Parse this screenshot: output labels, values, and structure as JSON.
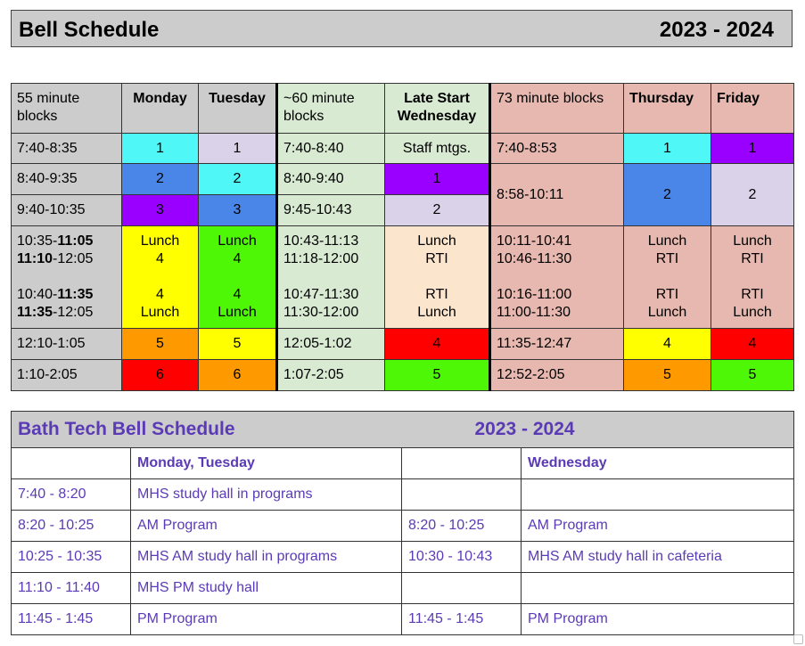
{
  "title": {
    "left": "Bell Schedule",
    "right": "2023 - 2024"
  },
  "schedule": {
    "blocks55": {
      "header": [
        "55 minute",
        "blocks"
      ],
      "monday": "Monday",
      "tuesday": "Tuesday",
      "rows": [
        {
          "time": "7:40-8:35",
          "mon": "1",
          "tue": "1"
        },
        {
          "time": "8:40-9:35",
          "mon": "2",
          "tue": "2"
        },
        {
          "time": "9:40-10:35",
          "mon": "3",
          "tue": "3"
        },
        {
          "time_a1": "10:35-",
          "time_a1b": "11:05",
          "time_a2b": "11:10",
          "time_a2": "-12:05",
          "time_b1": "10:40-",
          "time_b1b": "11:35",
          "time_b2b": "11:35",
          "time_b2": "-12:05",
          "mon": [
            "Lunch",
            "4",
            "4",
            "Lunch"
          ],
          "tue": [
            "Lunch",
            "4",
            "4",
            "Lunch"
          ]
        },
        {
          "time": "12:10-1:05",
          "mon": "5",
          "tue": "5"
        },
        {
          "time": "1:10-2:05",
          "mon": "6",
          "tue": "6"
        }
      ]
    },
    "blocks60": {
      "header": [
        "~60 minute",
        "blocks"
      ],
      "wednesday": [
        "Late Start",
        "Wednesday"
      ],
      "rows": [
        {
          "time": "7:40-8:40",
          "wed": "Staff mtgs."
        },
        {
          "time": "8:40-9:40",
          "wed": "1"
        },
        {
          "time": "9:45-10:43",
          "wed": "2"
        },
        {
          "time": [
            "10:43-11:13",
            "11:18-12:00",
            "10:47-11:30",
            "11:30-12:00"
          ],
          "wed": [
            "Lunch",
            "RTI",
            "RTI",
            "Lunch"
          ]
        },
        {
          "time": "12:05-1:02",
          "wed": "4"
        },
        {
          "time": "1:07-2:05",
          "wed": "5"
        }
      ]
    },
    "blocks73": {
      "header": "73 minute blocks",
      "thursday": "Thursday",
      "friday": "Friday",
      "rows": [
        {
          "time": "7:40-8:53",
          "thu": "1",
          "fri": "1"
        },
        {
          "time": "8:58-10:11",
          "thu": "2",
          "fri": "2"
        },
        {
          "time": [
            "10:11-10:41",
            "10:46-11:30",
            "10:16-11:00",
            "11:00-11:30"
          ],
          "thu": [
            "Lunch",
            "RTI",
            "RTI",
            "Lunch"
          ],
          "fri": [
            "Lunch",
            "RTI",
            "RTI",
            "Lunch"
          ]
        },
        {
          "time": "11:35-12:47",
          "thu": "4",
          "fri": "4"
        },
        {
          "time": "12:52-2:05",
          "thu": "5",
          "fri": "5"
        }
      ]
    }
  },
  "bath_tech": {
    "title": "Bath Tech Bell Schedule",
    "year": "2023 - 2024",
    "col_mon_tue": "Monday, Tuesday",
    "col_wed": "Wednesday",
    "rows": [
      {
        "t1": "7:40 - 8:20",
        "a1": "MHS study hall in programs",
        "t2": "",
        "a2": ""
      },
      {
        "t1": "8:20 - 10:25",
        "a1": "AM Program",
        "t2": "8:20 - 10:25",
        "a2": "AM Program"
      },
      {
        "t1": "10:25 - 10:35",
        "a1": "MHS AM study hall in programs",
        "t2": "10:30 - 10:43",
        "a2": "MHS AM study hall in cafeteria"
      },
      {
        "t1": "11:10 - 11:40",
        "a1": "MHS PM study hall",
        "t2": "",
        "a2": ""
      },
      {
        "t1": "11:45 - 1:45",
        "a1": "PM Program",
        "t2": "11:45 - 1:45",
        "a2": "PM Program"
      }
    ]
  }
}
